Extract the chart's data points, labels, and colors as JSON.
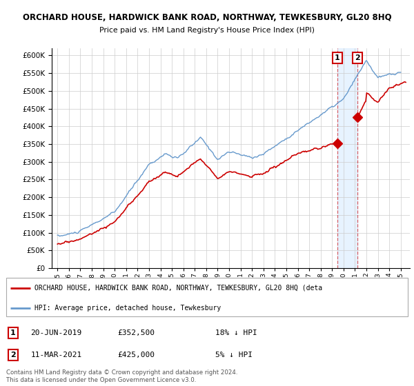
{
  "title1": "ORCHARD HOUSE, HARDWICK BANK ROAD, NORTHWAY, TEWKESBURY, GL20 8HQ",
  "title2": "Price paid vs. HM Land Registry's House Price Index (HPI)",
  "legend_line1": "ORCHARD HOUSE, HARDWICK BANK ROAD, NORTHWAY, TEWKESBURY, GL20 8HQ (deta",
  "legend_line2": "HPI: Average price, detached house, Tewkesbury",
  "sale1_date": "20-JUN-2019",
  "sale1_price": "£352,500",
  "sale1_hpi": "18% ↓ HPI",
  "sale2_date": "11-MAR-2021",
  "sale2_price": "£425,000",
  "sale2_hpi": "5% ↓ HPI",
  "footer": "Contains HM Land Registry data © Crown copyright and database right 2024.\nThis data is licensed under the Open Government Licence v3.0.",
  "hpi_color": "#6699cc",
  "price_color": "#cc0000",
  "shade_color": "#ddeeff",
  "sale1_year": 2019.47,
  "sale2_year": 2021.19,
  "sale1_price_val": 352500,
  "sale2_price_val": 425000,
  "ylim_min": 0,
  "ylim_max": 620000,
  "xlim_min": 1994.5,
  "xlim_max": 2025.8
}
